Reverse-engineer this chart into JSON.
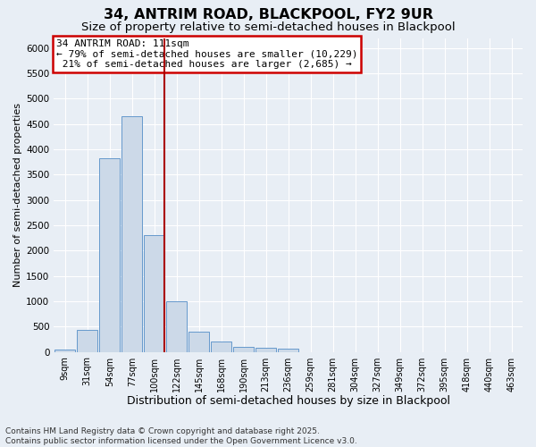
{
  "title": "34, ANTRIM ROAD, BLACKPOOL, FY2 9UR",
  "subtitle": "Size of property relative to semi-detached houses in Blackpool",
  "xlabel": "Distribution of semi-detached houses by size in Blackpool",
  "ylabel": "Number of semi-detached properties",
  "categories": [
    "9sqm",
    "31sqm",
    "54sqm",
    "77sqm",
    "100sqm",
    "122sqm",
    "145sqm",
    "168sqm",
    "190sqm",
    "213sqm",
    "236sqm",
    "259sqm",
    "281sqm",
    "304sqm",
    "327sqm",
    "349sqm",
    "372sqm",
    "395sqm",
    "418sqm",
    "440sqm",
    "463sqm"
  ],
  "values": [
    50,
    430,
    3820,
    4650,
    2300,
    1000,
    400,
    200,
    100,
    75,
    65,
    0,
    0,
    0,
    0,
    0,
    0,
    0,
    0,
    0,
    0
  ],
  "bar_color": "#ccd9e8",
  "bar_edge_color": "#6699cc",
  "vline_x_index": 4,
  "vline_color": "#aa0000",
  "annotation_text_line1": "34 ANTRIM ROAD: 111sqm",
  "annotation_text_line2": "← 79% of semi-detached houses are smaller (10,229)",
  "annotation_text_line3": " 21% of semi-detached houses are larger (2,685) →",
  "annotation_box_color": "#ffffff",
  "annotation_box_edge_color": "#cc0000",
  "ylim": [
    0,
    6200
  ],
  "yticks": [
    0,
    500,
    1000,
    1500,
    2000,
    2500,
    3000,
    3500,
    4000,
    4500,
    5000,
    5500,
    6000
  ],
  "background_color": "#e8eef5",
  "grid_color": "#ffffff",
  "footer_line1": "Contains HM Land Registry data © Crown copyright and database right 2025.",
  "footer_line2": "Contains public sector information licensed under the Open Government Licence v3.0.",
  "title_fontsize": 11.5,
  "subtitle_fontsize": 9.5,
  "xlabel_fontsize": 9,
  "ylabel_fontsize": 8,
  "tick_fontsize": 7.5,
  "footer_fontsize": 6.5,
  "annotation_fontsize": 8
}
